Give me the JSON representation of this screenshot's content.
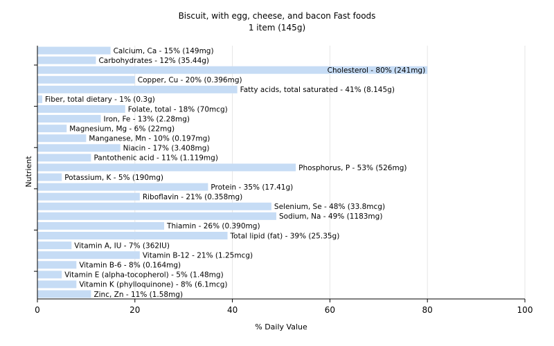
{
  "chart_data": {
    "type": "bar",
    "orientation": "horizontal",
    "title": "Biscuit, with egg, cheese, and bacon Fast foods",
    "subtitle": "1 item (145g)",
    "xlabel": "% Daily Value",
    "ylabel": "Nutrient",
    "xlim": [
      0,
      100
    ],
    "xticks": [
      0,
      20,
      40,
      60,
      80,
      100
    ],
    "grid": true,
    "bar_color": "#c6dcf5",
    "gridline_color": "#e6e6e6",
    "categories": [
      "Calcium, Ca",
      "Carbohydrates",
      "Cholesterol",
      "Copper, Cu",
      "Fatty acids, total saturated",
      "Fiber, total dietary",
      "Folate, total",
      "Iron, Fe",
      "Magnesium, Mg",
      "Manganese, Mn",
      "Niacin",
      "Pantothenic acid",
      "Phosphorus, P",
      "Potassium, K",
      "Protein",
      "Riboflavin",
      "Selenium, Se",
      "Sodium, Na",
      "Thiamin",
      "Total lipid (fat)",
      "Vitamin A, IU",
      "Vitamin B-12",
      "Vitamin B-6",
      "Vitamin E (alpha-tocopherol)",
      "Vitamin K (phylloquinone)",
      "Zinc, Zn"
    ],
    "values": [
      15,
      12,
      80,
      20,
      41,
      1,
      18,
      13,
      6,
      10,
      17,
      11,
      53,
      5,
      35,
      21,
      48,
      49,
      26,
      39,
      7,
      21,
      8,
      5,
      8,
      11
    ],
    "labels": [
      "Calcium, Ca - 15% (149mg)",
      "Carbohydrates - 12% (35.44g)",
      "Cholesterol - 80% (241mg)",
      "Copper, Cu - 20% (0.396mg)",
      "Fatty acids, total saturated - 41% (8.145g)",
      "Fiber, total dietary - 1% (0.3g)",
      "Folate, total - 18% (70mcg)",
      "Iron, Fe - 13% (2.28mg)",
      "Magnesium, Mg - 6% (22mg)",
      "Manganese, Mn - 10% (0.197mg)",
      "Niacin - 17% (3.408mg)",
      "Pantothenic acid - 11% (1.119mg)",
      "Phosphorus, P - 53% (526mg)",
      "Potassium, K - 5% (190mg)",
      "Protein - 35% (17.41g)",
      "Riboflavin - 21% (0.358mg)",
      "Selenium, Se - 48% (33.8mcg)",
      "Sodium, Na - 49% (1183mg)",
      "Thiamin - 26% (0.390mg)",
      "Total lipid (fat) - 39% (25.35g)",
      "Vitamin A, IU - 7% (362IU)",
      "Vitamin B-12 - 21% (1.25mcg)",
      "Vitamin B-6 - 8% (0.164mg)",
      "Vitamin E (alpha-tocopherol) - 5% (1.48mg)",
      "Vitamin K (phylloquinone) - 8% (6.1mcg)",
      "Zinc, Zn - 11% (1.58mg)"
    ]
  }
}
